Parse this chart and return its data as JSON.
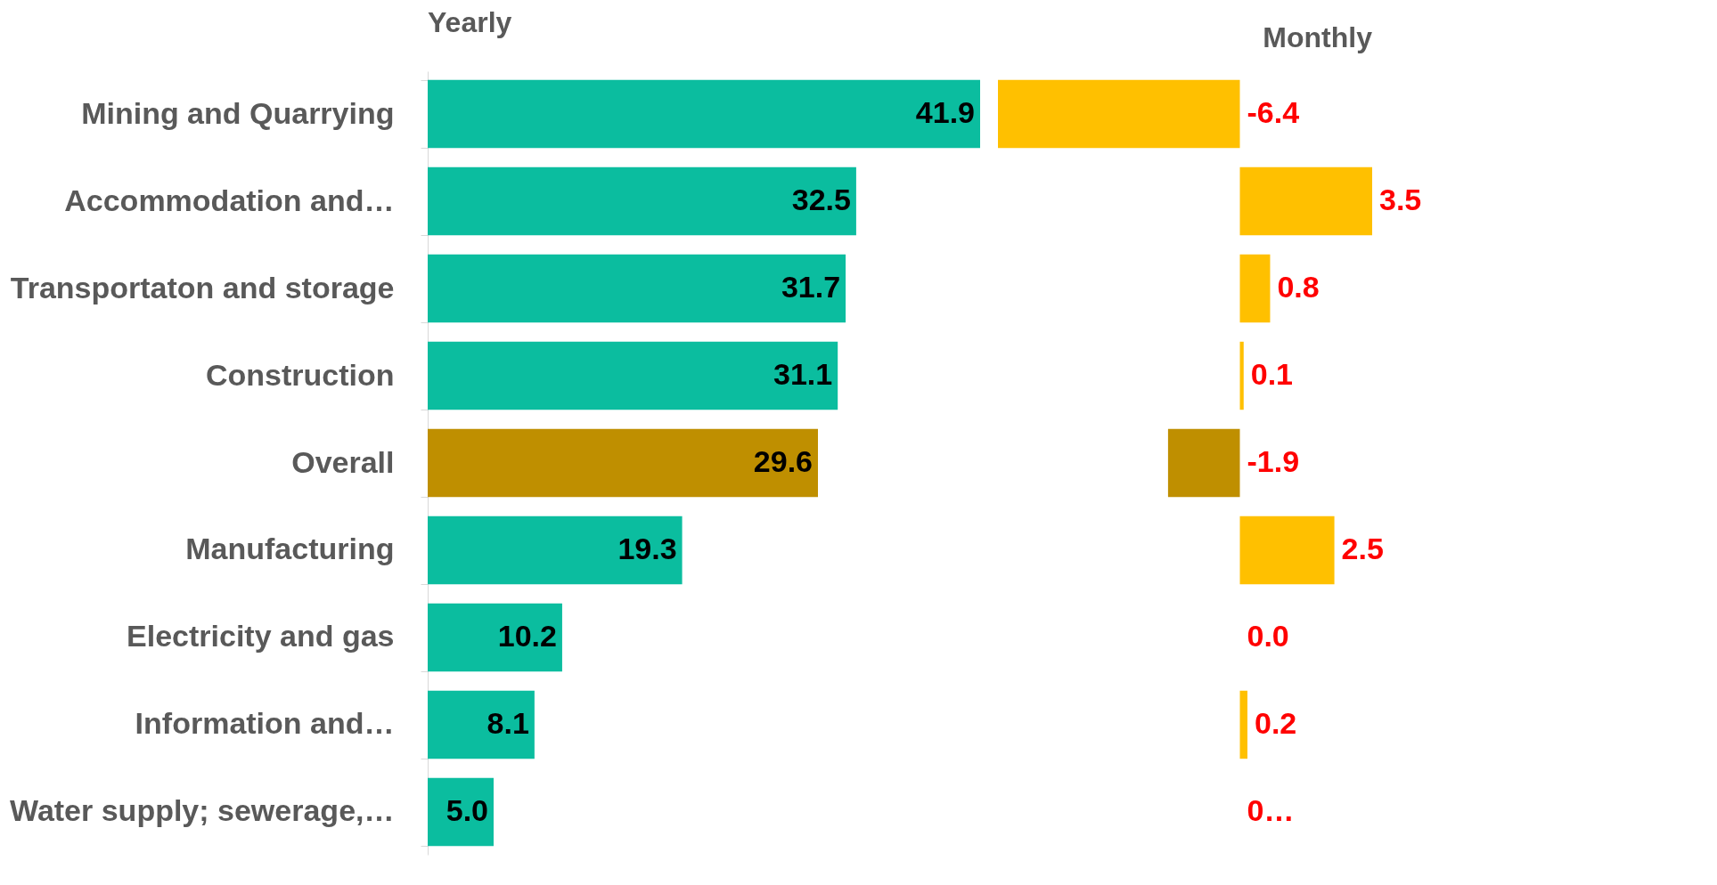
{
  "chart_data": [
    {
      "type": "bar",
      "orientation": "horizontal",
      "title": "Yearly",
      "categories": [
        "Mining and Quarrying",
        "Accommodation and…",
        "Transportaton and storage",
        "Construction",
        "Overall",
        "Manufacturing",
        "Electricity and gas",
        "Information and…",
        "Water supply; sewerage,…"
      ],
      "values": [
        41.9,
        32.5,
        31.7,
        31.1,
        29.6,
        19.3,
        10.2,
        8.1,
        5.0
      ],
      "colors": [
        "#0bbd9f",
        "#0bbd9f",
        "#0bbd9f",
        "#0bbd9f",
        "#bf8f00",
        "#0bbd9f",
        "#0bbd9f",
        "#0bbd9f",
        "#0bbd9f"
      ],
      "value_labels": [
        "41.9",
        "32.5",
        "31.7",
        "31.1",
        "29.6",
        "19.3",
        "10.2",
        "8.1",
        "5.0"
      ]
    },
    {
      "type": "bar",
      "orientation": "horizontal",
      "title": "Monthly",
      "tick_labels": false,
      "values": [
        -6.4,
        3.5,
        0.8,
        0.1,
        -1.9,
        2.5,
        0.0,
        0.2,
        0.0
      ],
      "colors": [
        "#ffc000",
        "#ffc000",
        "#ffc000",
        "#ffc000",
        "#bf8f00",
        "#ffc000",
        "#ffc000",
        "#ffc000",
        "#ffc000"
      ],
      "value_labels": [
        "-6.4",
        "3.5",
        "0.8",
        "0.1",
        "-1.9",
        "2.5",
        "0.0",
        "0.2",
        "0…"
      ]
    }
  ]
}
